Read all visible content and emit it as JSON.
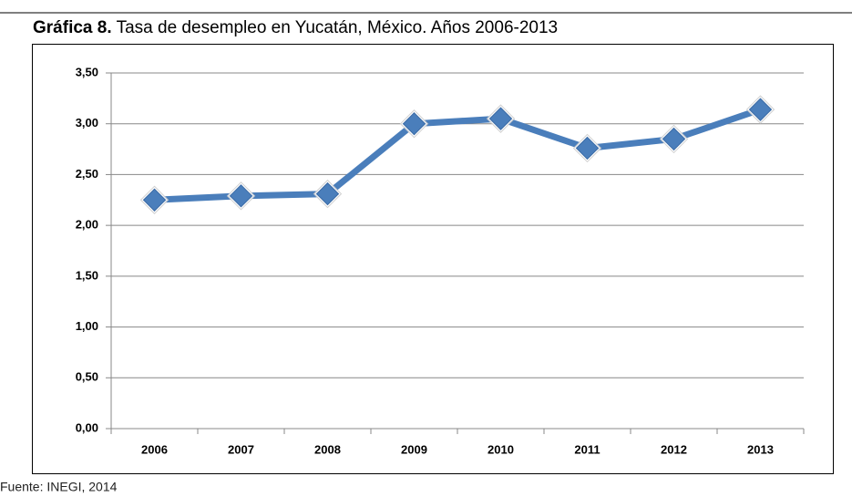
{
  "chart_data": {
    "type": "line",
    "title_label": "Gráfica 8.",
    "title": "Tasa de desempleo en Yucatán, México. Años 2006-2013",
    "source": "Fuente: INEGI, 2014",
    "categories": [
      "2006",
      "2007",
      "2008",
      "2009",
      "2010",
      "2011",
      "2012",
      "2013"
    ],
    "series": [
      {
        "color": "#4a7ebb",
        "values": [
          2.25,
          2.29,
          2.31,
          3.0,
          3.05,
          2.76,
          2.85,
          3.14
        ]
      }
    ],
    "ylim": [
      0,
      3.5
    ],
    "yticks": [
      {
        "value": 0,
        "label": "0,00"
      },
      {
        "value": 0.5,
        "label": "0,50"
      },
      {
        "value": 1,
        "label": "1,00"
      },
      {
        "value": 1.5,
        "label": "1,50"
      },
      {
        "value": 2,
        "label": "2,00"
      },
      {
        "value": 2.5,
        "label": "2,50"
      },
      {
        "value": 3,
        "label": "3,00"
      },
      {
        "value": 3.5,
        "label": "3,50"
      }
    ],
    "grid": true
  }
}
